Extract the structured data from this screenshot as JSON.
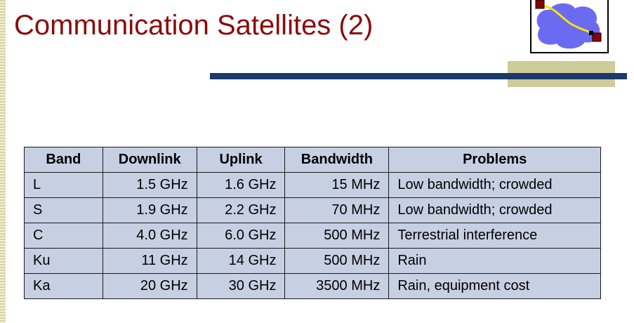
{
  "slide": {
    "title": "Communication Satellites (2)"
  },
  "logo": {
    "icon": "network-cloud-icon",
    "colors": {
      "cloud": "#6b6bf2",
      "link": "#f5e400",
      "node": "#8b0000"
    }
  },
  "colors": {
    "title": "#8b0a0a",
    "accent_bar": "#1b3a6b",
    "accent_block": "#d0cb9a",
    "table_bg": "#c7cfe3"
  },
  "table": {
    "headers": [
      "Band",
      "Downlink",
      "Uplink",
      "Bandwidth",
      "Problems"
    ],
    "rows": [
      [
        "L",
        "1.5 GHz",
        "1.6 GHz",
        "15 MHz",
        "Low bandwidth; crowded"
      ],
      [
        "S",
        "1.9 GHz",
        "2.2 GHz",
        "70 MHz",
        "Low bandwidth; crowded"
      ],
      [
        "C",
        "4.0 GHz",
        "6.0 GHz",
        "500 MHz",
        "Terrestrial interference"
      ],
      [
        "Ku",
        "11 GHz",
        "14 GHz",
        "500 MHz",
        "Rain"
      ],
      [
        "Ka",
        "20 GHz",
        "30 GHz",
        "3500 MHz",
        "Rain, equipment cost"
      ]
    ]
  }
}
